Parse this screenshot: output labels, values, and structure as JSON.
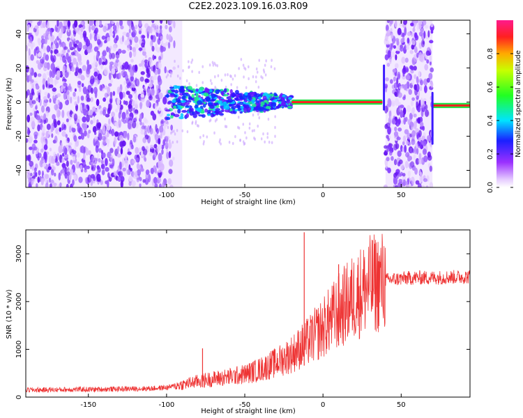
{
  "title": "C2E2.2023.109.16.03.R09",
  "chart_data": [
    {
      "type": "heatmap",
      "xlabel": "Height of straight line (km)",
      "ylabel": "Frequency (Hz)",
      "xlim": [
        -190,
        94
      ],
      "ylim": [
        -50,
        48
      ],
      "x_ticks": [
        -150,
        -100,
        -50,
        0,
        50
      ],
      "y_ticks": [
        -40,
        -20,
        0,
        20,
        40
      ],
      "colorbar": {
        "label": "Normalized spectral amplitude",
        "range": [
          0.0,
          1.0
        ],
        "ticks": [
          0.0,
          0.2,
          0.4,
          0.6,
          0.8
        ],
        "tick_labels": [
          "0.0",
          "0.2",
          "0.4",
          "0.6",
          "0.8"
        ]
      },
      "features": {
        "noise_regions_km": [
          [
            -190,
            -90
          ],
          [
            40,
            70
          ]
        ],
        "signal_band_center_hz": 0,
        "signal_band_start_km": -100,
        "signal_band_end_km": 94
      }
    },
    {
      "type": "line",
      "xlabel": "Height of straight line (km)",
      "ylabel": "SNR (10 * v/v)",
      "xlim": [
        -190,
        94
      ],
      "ylim": [
        0,
        3500
      ],
      "x_ticks": [
        -150,
        -100,
        -50,
        0,
        50
      ],
      "y_ticks": [
        0,
        1000,
        2000,
        3000
      ],
      "color": "#ee3333",
      "series": [
        {
          "x": [
            -190,
            -180,
            -170,
            -160,
            -150,
            -140,
            -130,
            -120,
            -110,
            -100,
            -90,
            -80,
            -70,
            -60,
            -50,
            -40,
            -30,
            -20,
            -10,
            0,
            10,
            20,
            30,
            40,
            50,
            60,
            70,
            80,
            94
          ],
          "values": [
            150,
            150,
            155,
            160,
            160,
            165,
            170,
            175,
            180,
            200,
            260,
            330,
            380,
            420,
            480,
            580,
            720,
            900,
            1150,
            1450,
            1800,
            2100,
            2350,
            2450,
            2480,
            2500,
            2500,
            2510,
            2520
          ]
        }
      ],
      "spikes": [
        {
          "x": -12,
          "value": 3450
        },
        {
          "x": 10,
          "value": 2780
        },
        {
          "x": -77,
          "value": 1020
        }
      ]
    }
  ]
}
